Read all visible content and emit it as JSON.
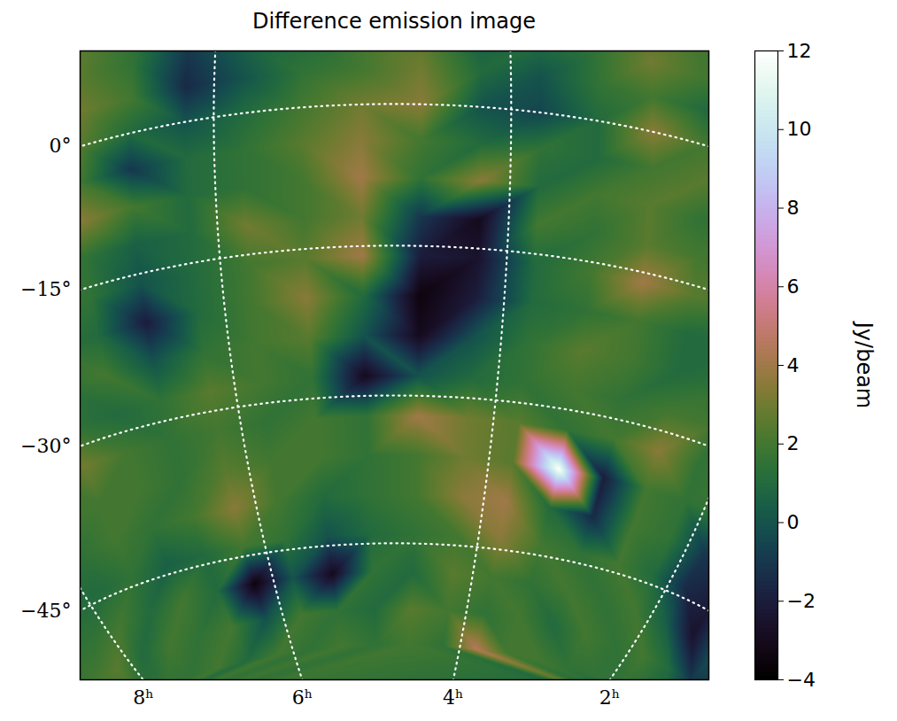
{
  "chart_data": {
    "type": "heatmap",
    "title": "Difference emission image",
    "grid": true,
    "color": "cubehelix",
    "x": [
      0.6,
      1.0,
      1.4,
      1.8,
      2.2,
      2.6,
      3.0,
      3.4,
      3.8,
      4.2,
      4.6,
      5.0,
      5.4,
      5.8,
      6.2,
      6.6,
      7.0,
      7.4,
      7.8,
      8.2,
      8.6,
      9.0
    ],
    "y": [
      12,
      8,
      4,
      0,
      -4,
      -8,
      -12,
      -16,
      -20,
      -24,
      -28,
      -32,
      -36,
      -40,
      -44,
      -48,
      -52,
      -56
    ],
    "values": [
      [
        1.5,
        1.5,
        1.5,
        1.5,
        2,
        2,
        2.5,
        2,
        1.5,
        1,
        2,
        2,
        1,
        0.5,
        0,
        1.5,
        2.5,
        2,
        2,
        2,
        2,
        2
      ],
      [
        1.5,
        1.5,
        1.5,
        1.5,
        2,
        2,
        3,
        1.5,
        1,
        0.5,
        2.5,
        2,
        1,
        0.5,
        -1,
        1.5,
        2.5,
        2,
        2,
        2,
        2,
        2
      ],
      [
        1.5,
        1.5,
        1.5,
        1.5,
        2,
        1,
        2,
        1.5,
        0,
        1,
        3,
        2,
        1.5,
        0,
        -1.5,
        2,
        3,
        2,
        2,
        2,
        2,
        2
      ],
      [
        1.5,
        1.5,
        1.5,
        1.5,
        2,
        2,
        3.5,
        1,
        -0.5,
        0,
        3.5,
        3,
        2,
        1,
        0,
        1,
        2.5,
        2,
        2,
        2,
        2,
        2
      ],
      [
        1.5,
        1.5,
        1.5,
        1.5,
        2,
        2.5,
        2,
        1,
        1.5,
        1,
        2,
        3.5,
        2.5,
        1.5,
        1,
        -1,
        2,
        2,
        2,
        2,
        2,
        2
      ],
      [
        1.5,
        1.5,
        1.5,
        1.5,
        2,
        1.5,
        2.5,
        2,
        1,
        3.5,
        1.5,
        4,
        2,
        1.5,
        1,
        2,
        3.5,
        2,
        2,
        2,
        2,
        2
      ],
      [
        1.5,
        1.5,
        1.5,
        1.5,
        2,
        2,
        2.5,
        1.5,
        2,
        -3,
        -1,
        3,
        2,
        3,
        1,
        0.5,
        1.5,
        2,
        2,
        2,
        2,
        2
      ],
      [
        1.5,
        1.5,
        1.5,
        1.5,
        2,
        2.5,
        4,
        2,
        1,
        -2.5,
        -2,
        4,
        2.5,
        2,
        1,
        0,
        1.5,
        2,
        2,
        2,
        2,
        2
      ],
      [
        1,
        1.5,
        1.5,
        1.5,
        1,
        1,
        2,
        1.5,
        1,
        -2,
        -3.5,
        1,
        3.5,
        2,
        1,
        -2,
        1,
        1.5,
        1.5,
        1.5,
        1.5,
        1.5
      ],
      [
        1.5,
        1.5,
        1.5,
        1.5,
        1.5,
        1,
        2,
        2.5,
        1.5,
        0,
        -3,
        0,
        2.5,
        2,
        1.5,
        0,
        2,
        1.5,
        1.5,
        1.5,
        1.5,
        1.5
      ],
      [
        1.5,
        1.5,
        1.5,
        1.5,
        2,
        2,
        1.5,
        2,
        1.5,
        1,
        0,
        -3,
        1.5,
        2,
        2.5,
        1.5,
        1,
        1.5,
        1.5,
        1.5,
        1.5,
        1.5
      ],
      [
        1.5,
        1.5,
        1.5,
        2,
        1.5,
        3.5,
        2,
        1.5,
        2.5,
        3,
        4,
        1.5,
        2,
        1.5,
        2,
        1.5,
        2,
        3,
        2,
        2,
        2,
        2
      ],
      [
        1.5,
        1.5,
        1.5,
        1.5,
        1.5,
        2,
        -2,
        12,
        2.5,
        3,
        2,
        1.5,
        2,
        2,
        2.5,
        1.5,
        2,
        2,
        2,
        2,
        2,
        2
      ],
      [
        1,
        1.5,
        0,
        -1,
        1.5,
        2,
        -1.5,
        1,
        4,
        3.5,
        2,
        1.5,
        1,
        2,
        3.5,
        2,
        1.5,
        2,
        1.5,
        1.5,
        1.5,
        1.5
      ],
      [
        0,
        0,
        -2,
        -1.5,
        1,
        2,
        1.5,
        2,
        3.5,
        2,
        1.5,
        1,
        0,
        1.5,
        2,
        1,
        0.5,
        1.5,
        1,
        1,
        1,
        1
      ],
      [
        0,
        0,
        -2.5,
        0.5,
        2,
        1.5,
        2,
        1.5,
        2,
        2.5,
        1,
        1.5,
        -3,
        0,
        -3.5,
        1,
        2,
        1,
        2,
        1.5,
        1.5,
        1.5
      ],
      [
        -1,
        -1,
        1,
        2,
        1.5,
        2,
        1,
        2,
        1.5,
        2,
        2.5,
        1,
        1.5,
        2,
        0,
        2,
        1.5,
        2,
        1,
        2.5,
        2,
        1.5
      ],
      [
        0,
        0.5,
        1,
        1.5,
        1.5,
        1.5,
        2,
        2,
        4.5,
        1.5,
        2,
        1.5,
        2,
        1.5,
        2,
        1,
        2,
        1.5,
        1.5,
        1.5,
        1.5,
        1.5
      ]
    ],
    "xticks": [
      {
        "value": 8,
        "label": "8ʰ"
      },
      {
        "value": 6,
        "label": "6ʰ"
      },
      {
        "value": 4,
        "label": "4ʰ"
      },
      {
        "value": 2,
        "label": "2ʰ"
      }
    ],
    "yticks": [
      {
        "value": 0,
        "label": "0°"
      },
      {
        "value": -15,
        "label": "−15°"
      },
      {
        "value": -30,
        "label": "−30°"
      },
      {
        "value": -45,
        "label": "−45°"
      }
    ],
    "colorbar": {
      "label": "Jy/beam",
      "lim": [
        -4,
        12
      ],
      "ticks": [
        -4,
        -2,
        0,
        2,
        4,
        6,
        8,
        10,
        12
      ]
    }
  }
}
